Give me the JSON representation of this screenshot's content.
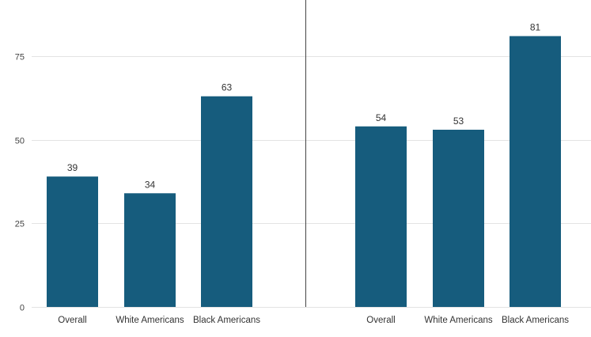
{
  "chart_data": {
    "type": "bar",
    "ylim": [
      0,
      85
    ],
    "yticks": [
      0,
      25,
      50,
      75
    ],
    "grid": true,
    "colors": {
      "bar": "#165c7d",
      "divider": "#444444",
      "grid": "#e3e3e3"
    },
    "panels": [
      {
        "categories": [
          "Overall",
          "White Americans",
          "Black Americans"
        ],
        "values": [
          39,
          34,
          63
        ]
      },
      {
        "categories": [
          "Overall",
          "White Americans",
          "Black Americans"
        ],
        "values": [
          54,
          53,
          81
        ]
      }
    ]
  }
}
